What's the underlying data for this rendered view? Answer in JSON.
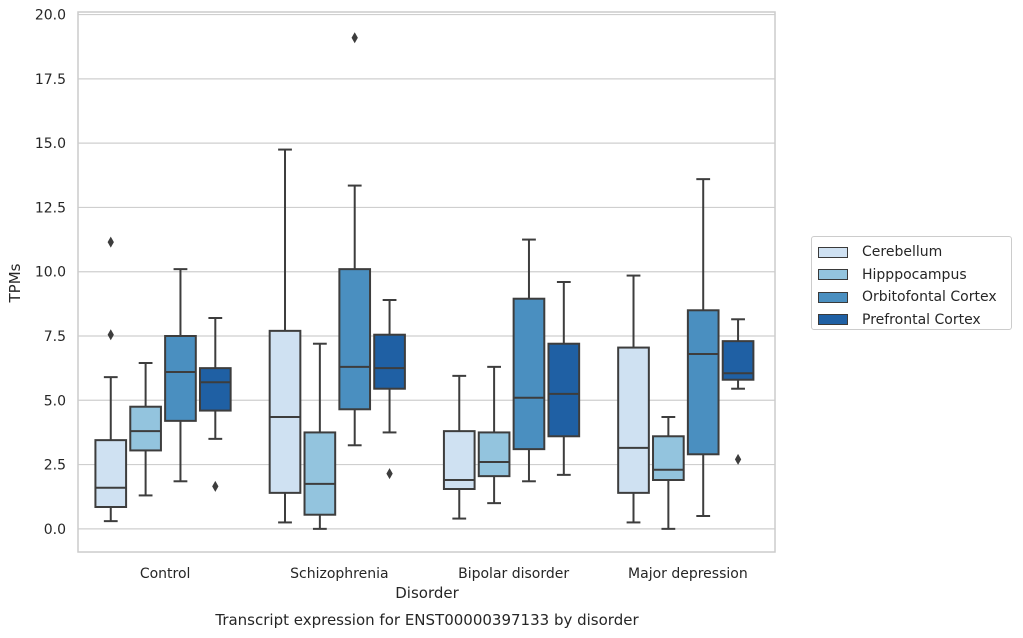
{
  "chart_data": {
    "type": "box",
    "title": "",
    "caption": "Transcript expression for ENST00000397133 by disorder",
    "xlabel": "Disorder",
    "ylabel": "TPMs",
    "ylim": [
      -0.9,
      20.1
    ],
    "yticks": [
      "0.0",
      "2.5",
      "5.0",
      "7.5",
      "10.0",
      "12.5",
      "15.0",
      "17.5",
      "20.0"
    ],
    "grid": "horizontal",
    "legend_position": "right",
    "categories": [
      "Control",
      "Schizophrenia",
      "Bipolar disorder",
      "Major depression"
    ],
    "series": [
      {
        "name": "Cerebellum",
        "color": "#cfe1f2",
        "boxes": [
          {
            "whislo": 0.3,
            "q1": 0.85,
            "med": 1.6,
            "q3": 3.45,
            "whishi": 5.9,
            "fliers": [
              7.55,
              11.15
            ]
          },
          {
            "whislo": 0.25,
            "q1": 1.4,
            "med": 4.35,
            "q3": 7.7,
            "whishi": 14.75,
            "fliers": []
          },
          {
            "whislo": 0.4,
            "q1": 1.55,
            "med": 1.9,
            "q3": 3.8,
            "whishi": 5.95,
            "fliers": []
          },
          {
            "whislo": 0.25,
            "q1": 1.4,
            "med": 3.15,
            "q3": 7.05,
            "whishi": 9.85,
            "fliers": []
          }
        ]
      },
      {
        "name": "Hipppocampus",
        "color": "#93c4de",
        "boxes": [
          {
            "whislo": 1.3,
            "q1": 3.05,
            "med": 3.8,
            "q3": 4.75,
            "whishi": 6.45,
            "fliers": []
          },
          {
            "whislo": 0.0,
            "q1": 0.55,
            "med": 1.75,
            "q3": 3.75,
            "whishi": 7.2,
            "fliers": []
          },
          {
            "whislo": 1.0,
            "q1": 2.05,
            "med": 2.6,
            "q3": 3.75,
            "whishi": 6.3,
            "fliers": []
          },
          {
            "whislo": 0.0,
            "q1": 1.9,
            "med": 2.3,
            "q3": 3.6,
            "whishi": 4.35,
            "fliers": []
          }
        ]
      },
      {
        "name": "Orbitofontal Cortex",
        "color": "#4a8fc0",
        "boxes": [
          {
            "whislo": 1.85,
            "q1": 4.2,
            "med": 6.1,
            "q3": 7.5,
            "whishi": 10.1,
            "fliers": []
          },
          {
            "whislo": 3.25,
            "q1": 4.65,
            "med": 6.3,
            "q3": 10.1,
            "whishi": 13.35,
            "fliers": [
              19.1
            ]
          },
          {
            "whislo": 1.85,
            "q1": 3.1,
            "med": 5.1,
            "q3": 8.95,
            "whishi": 11.25,
            "fliers": []
          },
          {
            "whislo": 0.5,
            "q1": 2.9,
            "med": 6.8,
            "q3": 8.5,
            "whishi": 13.6,
            "fliers": []
          }
        ]
      },
      {
        "name": "Prefrontal Cortex",
        "color": "#1f60a4",
        "boxes": [
          {
            "whislo": 3.5,
            "q1": 4.6,
            "med": 5.7,
            "q3": 6.25,
            "whishi": 8.2,
            "fliers": [
              1.65
            ]
          },
          {
            "whislo": 3.75,
            "q1": 5.45,
            "med": 6.25,
            "q3": 7.55,
            "whishi": 8.9,
            "fliers": [
              2.15
            ]
          },
          {
            "whislo": 2.1,
            "q1": 3.6,
            "med": 5.25,
            "q3": 7.2,
            "whishi": 9.6,
            "fliers": []
          },
          {
            "whislo": 5.45,
            "q1": 5.8,
            "med": 6.05,
            "q3": 7.3,
            "whishi": 8.15,
            "fliers": [
              2.7
            ]
          }
        ]
      }
    ]
  }
}
